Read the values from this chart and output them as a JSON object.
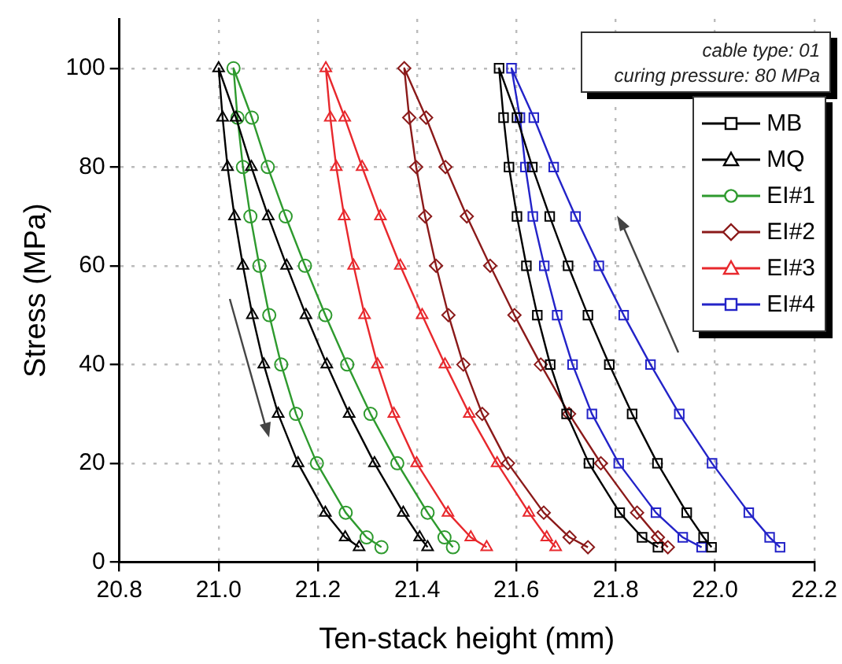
{
  "chart_data": {
    "type": "line",
    "xlabel": "Ten-stack height (mm)",
    "ylabel": "Stress (MPa)",
    "xlim": [
      20.8,
      22.2
    ],
    "ylim": [
      0,
      110
    ],
    "xticks": [
      20.8,
      {
        "value": 21,
        "label": "21.0"
      },
      21.2,
      21.4,
      21.6,
      21.8,
      {
        "value": 22,
        "label": "22.0"
      },
      22.2
    ],
    "yticks": [
      0,
      20,
      40,
      60,
      80,
      100
    ],
    "grid": true,
    "legend": "top right",
    "line_style": "solid",
    "annotations": [
      "cable type: 01",
      "curing pressure: 80 MPa"
    ],
    "series": [
      {
        "name": "MB",
        "color": "#000000",
        "marker": "square",
        "x": [
          21.993,
          21.977,
          21.943,
          21.884,
          21.833,
          21.787,
          21.744,
          21.704,
          21.667,
          21.632,
          21.601,
          21.565,
          21.574,
          21.585,
          21.601,
          21.62,
          21.642,
          21.668,
          21.701,
          21.746,
          21.808,
          21.853,
          21.885
        ],
        "values": [
          3,
          5,
          10,
          20,
          30,
          40,
          50,
          60,
          70,
          80,
          90,
          100,
          90,
          80,
          70,
          60,
          50,
          40,
          30,
          20,
          10,
          5,
          3
        ]
      },
      {
        "name": "MQ",
        "color": "#000000",
        "marker": "triangle",
        "x": [
          21.421,
          21.405,
          21.372,
          21.314,
          21.263,
          21.218,
          21.176,
          21.137,
          21.1,
          21.066,
          21.035,
          21.0,
          21.008,
          21.018,
          21.032,
          21.049,
          21.068,
          21.091,
          21.12,
          21.16,
          21.215,
          21.255,
          21.283
        ],
        "values": [
          3,
          5,
          10,
          20,
          30,
          40,
          50,
          60,
          70,
          80,
          90,
          100,
          90,
          80,
          70,
          60,
          50,
          40,
          30,
          20,
          10,
          5,
          3
        ]
      },
      {
        "name": "EI#1",
        "color": "#2e9a2e",
        "marker": "circle",
        "x": [
          21.472,
          21.455,
          21.421,
          21.36,
          21.306,
          21.259,
          21.215,
          21.174,
          21.135,
          21.099,
          21.067,
          21.03,
          21.038,
          21.049,
          21.064,
          21.082,
          21.102,
          21.126,
          21.156,
          21.198,
          21.256,
          21.298,
          21.328
        ],
        "values": [
          3,
          5,
          10,
          20,
          30,
          40,
          50,
          60,
          70,
          80,
          90,
          100,
          90,
          80,
          70,
          60,
          50,
          40,
          30,
          20,
          10,
          5,
          3
        ]
      },
      {
        "name": "EI#2",
        "color": "#8b1a1a",
        "marker": "diamond",
        "x": [
          21.905,
          21.885,
          21.843,
          21.77,
          21.706,
          21.649,
          21.596,
          21.547,
          21.5,
          21.457,
          21.418,
          21.374,
          21.384,
          21.398,
          21.416,
          21.438,
          21.463,
          21.493,
          21.531,
          21.583,
          21.655,
          21.707,
          21.744
        ],
        "values": [
          3,
          5,
          10,
          20,
          30,
          40,
          50,
          60,
          70,
          80,
          90,
          100,
          90,
          80,
          70,
          60,
          50,
          40,
          30,
          20,
          10,
          5,
          3
        ]
      },
      {
        "name": "EI#3",
        "color": "#e8282d",
        "marker": "triangle",
        "x": [
          21.679,
          21.661,
          21.625,
          21.561,
          21.505,
          21.456,
          21.41,
          21.366,
          21.326,
          21.289,
          21.254,
          21.216,
          21.225,
          21.237,
          21.253,
          21.272,
          21.294,
          21.32,
          21.353,
          21.399,
          21.462,
          21.508,
          21.54
        ],
        "values": [
          3,
          5,
          10,
          20,
          30,
          40,
          50,
          60,
          70,
          80,
          90,
          100,
          90,
          80,
          70,
          60,
          50,
          40,
          30,
          20,
          10,
          5,
          3
        ]
      },
      {
        "name": "EI#4",
        "color": "#2323c8",
        "marker": "square",
        "x": [
          22.131,
          22.11,
          22.068,
          21.994,
          21.928,
          21.87,
          21.816,
          21.766,
          21.719,
          21.675,
          21.635,
          21.59,
          21.607,
          21.618,
          21.633,
          21.656,
          21.682,
          21.713,
          21.752,
          21.806,
          21.881,
          21.935,
          21.973
        ],
        "values": [
          3,
          5,
          10,
          20,
          30,
          40,
          50,
          60,
          70,
          80,
          90,
          100,
          90,
          80,
          70,
          60,
          50,
          40,
          30,
          20,
          10,
          5,
          3
        ]
      }
    ]
  }
}
